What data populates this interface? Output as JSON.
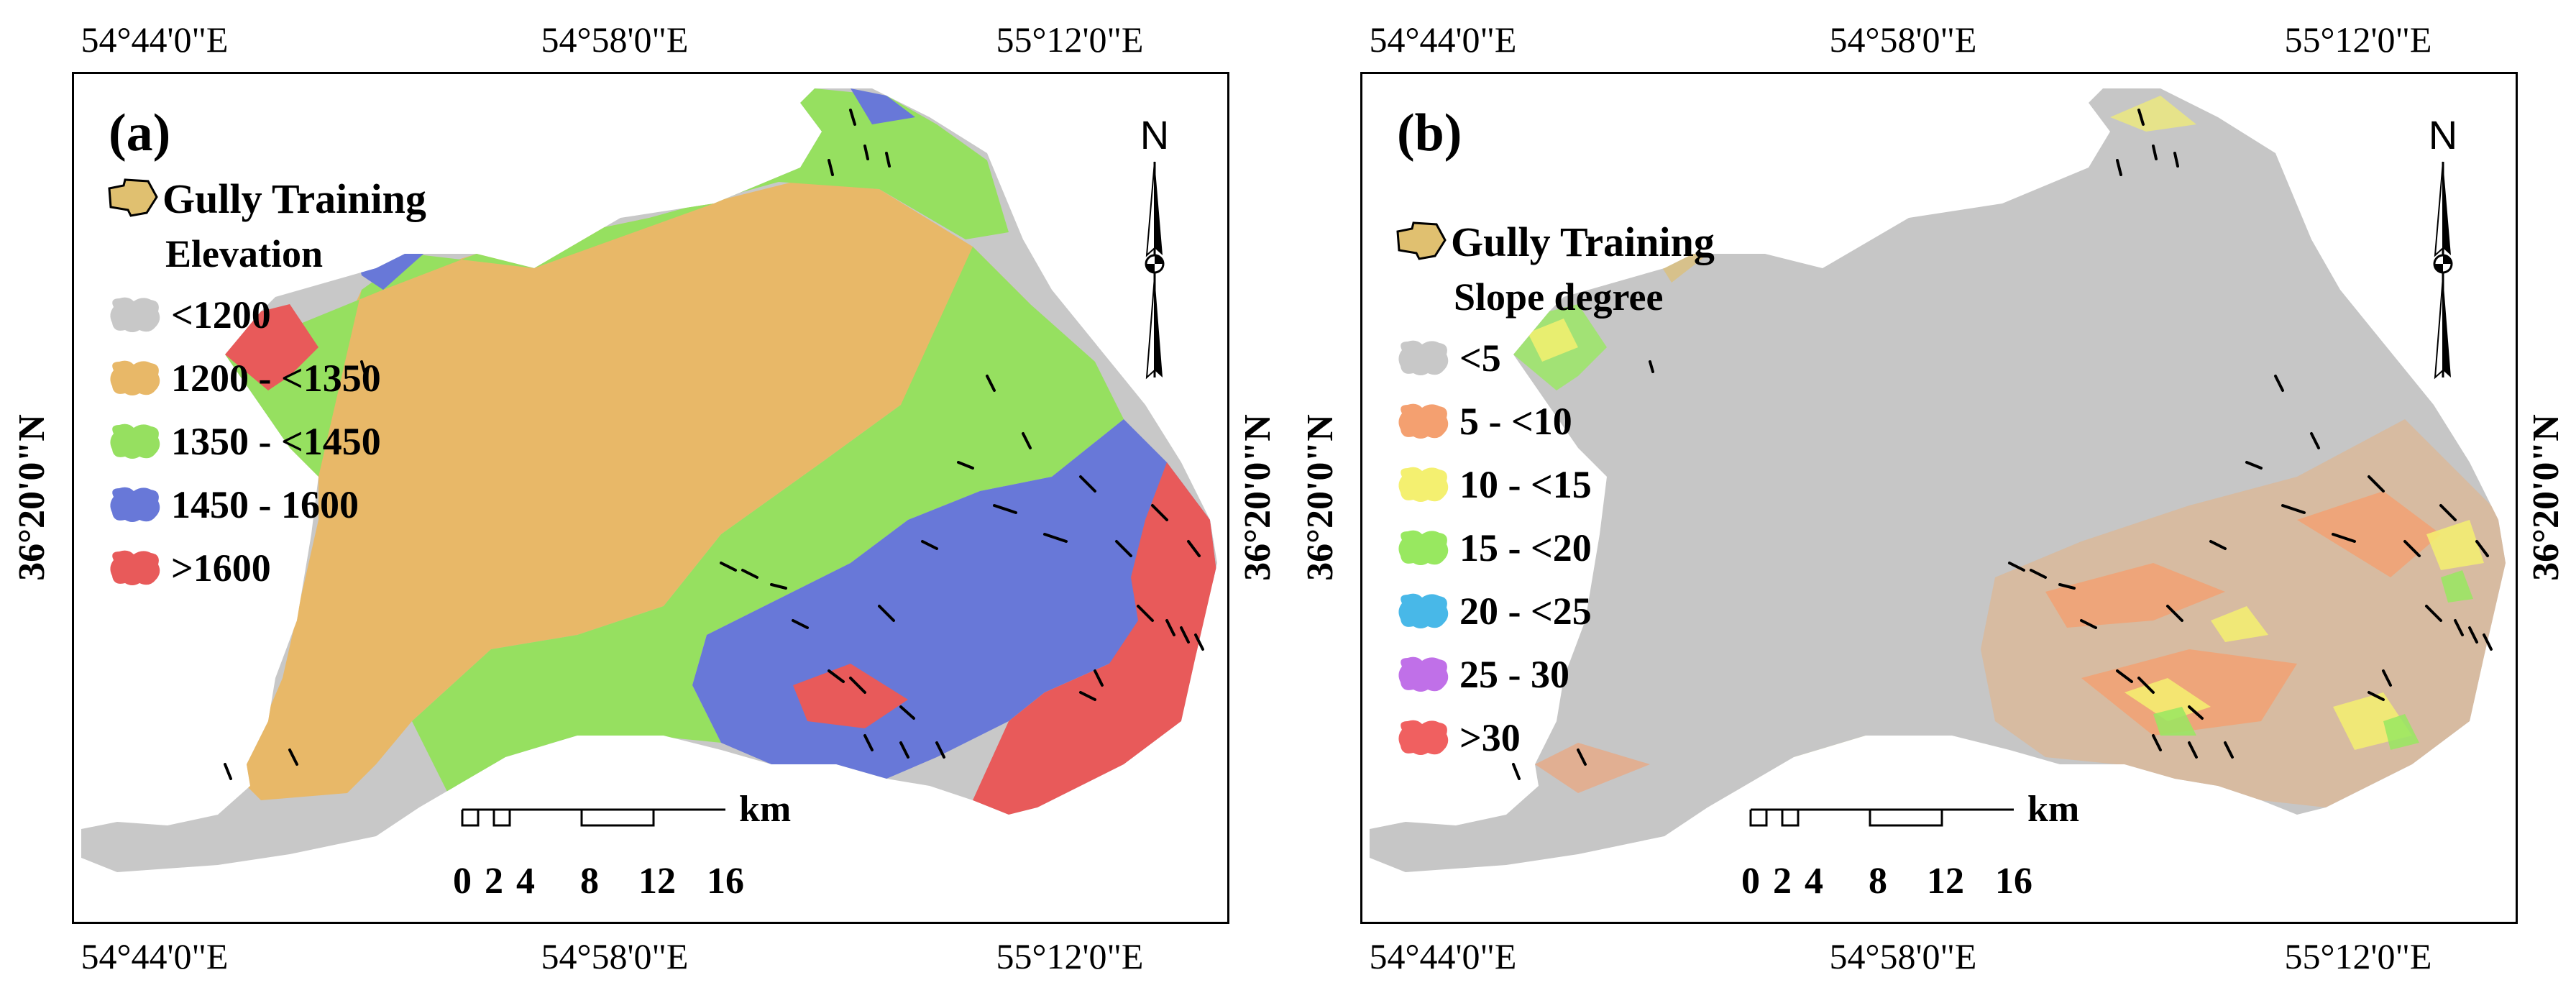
{
  "coords": {
    "top": [
      "54°44'0\"E",
      "54°58'0\"E",
      "55°12'0\"E"
    ],
    "bottom": [
      "54°44'0\"E",
      "54°58'0\"E",
      "55°12'0\"E"
    ],
    "lat": "36°20'0\"N"
  },
  "north_label": "N",
  "scale": {
    "ticks": [
      "0",
      "2",
      "4",
      "8",
      "12",
      "16"
    ],
    "unit": "km"
  },
  "panel_a": {
    "label": "(a)",
    "training_label": "Gully Training",
    "heading": "Elevation",
    "classes": [
      {
        "label": "<1200",
        "color": "#c8c8c8"
      },
      {
        "label": "1200 - <1350",
        "color": "#e8b868"
      },
      {
        "label": "1350 - <1450",
        "color": "#96e060"
      },
      {
        "label": "1450 - 1600",
        "color": "#6878d8"
      },
      {
        "label": ">1600",
        "color": "#e85a5a"
      }
    ]
  },
  "panel_b": {
    "label": "(b)",
    "training_label": "Gully Training",
    "heading": "Slope degree",
    "classes": [
      {
        "label": "<5",
        "color": "#c8c8c8"
      },
      {
        "label": "5 - <10",
        "color": "#f4a070"
      },
      {
        "label": "10 - <15",
        "color": "#f4f070"
      },
      {
        "label": "15 - <20",
        "color": "#98e860"
      },
      {
        "label": "20 - <25",
        "color": "#48b8e8"
      },
      {
        "label": "25 - 30",
        "color": "#c070e8"
      },
      {
        "label": ">30",
        "color": "#f06060"
      }
    ]
  },
  "training_color": "#e0c070"
}
